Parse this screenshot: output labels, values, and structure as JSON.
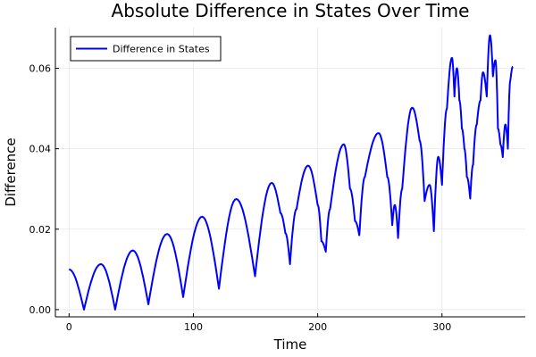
{
  "chart_data": {
    "type": "line",
    "title": "Absolute Difference in States Over Time",
    "xlabel": "Time",
    "ylabel": "Difference",
    "xlim": [
      -11,
      367
    ],
    "ylim": [
      -0.0018,
      0.0701
    ],
    "xticks": [
      0,
      100,
      200,
      300
    ],
    "xtick_labels": [
      "0",
      "100",
      "200",
      "300"
    ],
    "yticks": [
      0,
      0.02,
      0.04,
      0.06
    ],
    "ytick_labels": [
      "0.00",
      "0.02",
      "0.04",
      "0.06"
    ],
    "grid": true,
    "legend_placement": "top-left",
    "series": [
      {
        "name": "Difference in States",
        "color": "#0000ff",
        "x": [
          0,
          12,
          25.6,
          37.1,
          51.3,
          63.8,
          78.9,
          91.8,
          107,
          120.6,
          134.5,
          149.6,
          163,
          170,
          174,
          177.7,
          183,
          192.3,
          200,
          203,
          206.5,
          210,
          221,
          226,
          230,
          233.5,
          238,
          249,
          256,
          260,
          262,
          264.7,
          268,
          276,
          282,
          286,
          290,
          293.5,
          297,
          300,
          304,
          308,
          310,
          312,
          314,
          316,
          318,
          320,
          322.7,
          325,
          328,
          331,
          333,
          336,
          338.6,
          341,
          343,
          345,
          347,
          348.9,
          351,
          353,
          355,
          357
        ],
        "y": [
          0.01,
          0.0,
          0.0113,
          0.0,
          0.0147,
          0.0013,
          0.0188,
          0.0031,
          0.0231,
          0.0052,
          0.0275,
          0.0083,
          0.0315,
          0.024,
          0.019,
          0.0113,
          0.025,
          0.0358,
          0.026,
          0.017,
          0.0144,
          0.025,
          0.0411,
          0.03,
          0.022,
          0.0185,
          0.033,
          0.0439,
          0.033,
          0.021,
          0.026,
          0.0178,
          0.03,
          0.0502,
          0.042,
          0.027,
          0.031,
          0.0195,
          0.038,
          0.031,
          0.05,
          0.0626,
          0.053,
          0.06,
          0.052,
          0.045,
          0.04,
          0.033,
          0.0276,
          0.036,
          0.046,
          0.052,
          0.059,
          0.053,
          0.0682,
          0.058,
          0.062,
          0.045,
          0.041,
          0.0379,
          0.046,
          0.04,
          0.057,
          0.0604
        ]
      }
    ]
  }
}
